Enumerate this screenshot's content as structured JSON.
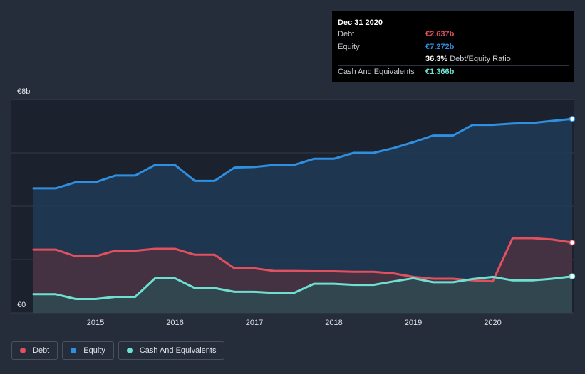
{
  "chart_data": {
    "type": "area",
    "title": "",
    "xlabel": "",
    "ylabel": "",
    "xlim": [
      2014.22,
      2021.0
    ],
    "ylim": [
      0,
      8
    ],
    "y_tick_labels": [
      {
        "value": 8,
        "label": "€8b"
      },
      {
        "value": 0,
        "label": "€0"
      }
    ],
    "x_ticks": [
      {
        "value": 2015,
        "label": "2015"
      },
      {
        "value": 2016,
        "label": "2016"
      },
      {
        "value": 2017,
        "label": "2017"
      },
      {
        "value": 2018,
        "label": "2018"
      },
      {
        "value": 2019,
        "label": "2019"
      },
      {
        "value": 2020,
        "label": "2020"
      }
    ],
    "grid": true,
    "series": [
      {
        "name": "Equity",
        "color": "#2f8fe0",
        "fill": "#1e3a56",
        "values": [
          [
            2014.22,
            4.67
          ],
          [
            2014.5,
            4.67
          ],
          [
            2014.75,
            4.9
          ],
          [
            2015.0,
            4.9
          ],
          [
            2015.25,
            5.15
          ],
          [
            2015.5,
            5.15
          ],
          [
            2015.75,
            5.55
          ],
          [
            2016.0,
            5.55
          ],
          [
            2016.25,
            4.95
          ],
          [
            2016.5,
            4.95
          ],
          [
            2016.75,
            5.45
          ],
          [
            2017.0,
            5.47
          ],
          [
            2017.25,
            5.55
          ],
          [
            2017.5,
            5.55
          ],
          [
            2017.75,
            5.78
          ],
          [
            2018.0,
            5.78
          ],
          [
            2018.25,
            6.0
          ],
          [
            2018.5,
            6.0
          ],
          [
            2018.75,
            6.18
          ],
          [
            2019.0,
            6.4
          ],
          [
            2019.25,
            6.65
          ],
          [
            2019.5,
            6.65
          ],
          [
            2019.75,
            7.05
          ],
          [
            2020.0,
            7.05
          ],
          [
            2020.25,
            7.1
          ],
          [
            2020.5,
            7.12
          ],
          [
            2020.75,
            7.2
          ],
          [
            2021.0,
            7.272
          ]
        ]
      },
      {
        "name": "Debt",
        "color": "#e0505f",
        "fill": "#4b3040",
        "values": [
          [
            2014.22,
            2.37
          ],
          [
            2014.5,
            2.37
          ],
          [
            2014.75,
            2.12
          ],
          [
            2015.0,
            2.12
          ],
          [
            2015.25,
            2.33
          ],
          [
            2015.5,
            2.33
          ],
          [
            2015.75,
            2.4
          ],
          [
            2016.0,
            2.4
          ],
          [
            2016.25,
            2.18
          ],
          [
            2016.5,
            2.18
          ],
          [
            2016.75,
            1.67
          ],
          [
            2017.0,
            1.67
          ],
          [
            2017.25,
            1.57
          ],
          [
            2017.5,
            1.57
          ],
          [
            2017.75,
            1.56
          ],
          [
            2018.0,
            1.56
          ],
          [
            2018.25,
            1.54
          ],
          [
            2018.5,
            1.54
          ],
          [
            2018.75,
            1.48
          ],
          [
            2019.0,
            1.35
          ],
          [
            2019.25,
            1.28
          ],
          [
            2019.5,
            1.28
          ],
          [
            2019.75,
            1.22
          ],
          [
            2020.0,
            1.18
          ],
          [
            2020.25,
            2.8
          ],
          [
            2020.5,
            2.8
          ],
          [
            2020.75,
            2.75
          ],
          [
            2021.0,
            2.637
          ]
        ]
      },
      {
        "name": "Cash And Equivalents",
        "color": "#6ee0d2",
        "fill": "#2e4a50",
        "values": [
          [
            2014.22,
            0.7
          ],
          [
            2014.5,
            0.7
          ],
          [
            2014.75,
            0.52
          ],
          [
            2015.0,
            0.52
          ],
          [
            2015.25,
            0.6
          ],
          [
            2015.5,
            0.6
          ],
          [
            2015.75,
            1.3
          ],
          [
            2016.0,
            1.3
          ],
          [
            2016.25,
            0.93
          ],
          [
            2016.5,
            0.93
          ],
          [
            2016.75,
            0.79
          ],
          [
            2017.0,
            0.79
          ],
          [
            2017.25,
            0.75
          ],
          [
            2017.5,
            0.75
          ],
          [
            2017.75,
            1.09
          ],
          [
            2018.0,
            1.09
          ],
          [
            2018.25,
            1.05
          ],
          [
            2018.5,
            1.05
          ],
          [
            2018.75,
            1.18
          ],
          [
            2019.0,
            1.3
          ],
          [
            2019.25,
            1.15
          ],
          [
            2019.5,
            1.15
          ],
          [
            2019.75,
            1.27
          ],
          [
            2020.0,
            1.35
          ],
          [
            2020.25,
            1.22
          ],
          [
            2020.5,
            1.22
          ],
          [
            2020.75,
            1.28
          ],
          [
            2021.0,
            1.366
          ]
        ]
      }
    ]
  },
  "tooltip": {
    "title": "Dec 31 2020",
    "rows": [
      {
        "label": "Debt",
        "value": "€2.637b",
        "color": "#e0505f"
      },
      {
        "label": "Equity",
        "value": "€7.272b",
        "color": "#2f8fe0"
      },
      {
        "label": "",
        "value": "36.3%",
        "suffix": "Debt/Equity Ratio",
        "color": "#ffffff"
      },
      {
        "label": "Cash And Equivalents",
        "value": "€1.366b",
        "color": "#6ee0d2"
      }
    ]
  },
  "legend": [
    {
      "label": "Debt",
      "color": "#e0505f"
    },
    {
      "label": "Equity",
      "color": "#2f8fe0"
    },
    {
      "label": "Cash And Equivalents",
      "color": "#6ee0d2"
    }
  ]
}
